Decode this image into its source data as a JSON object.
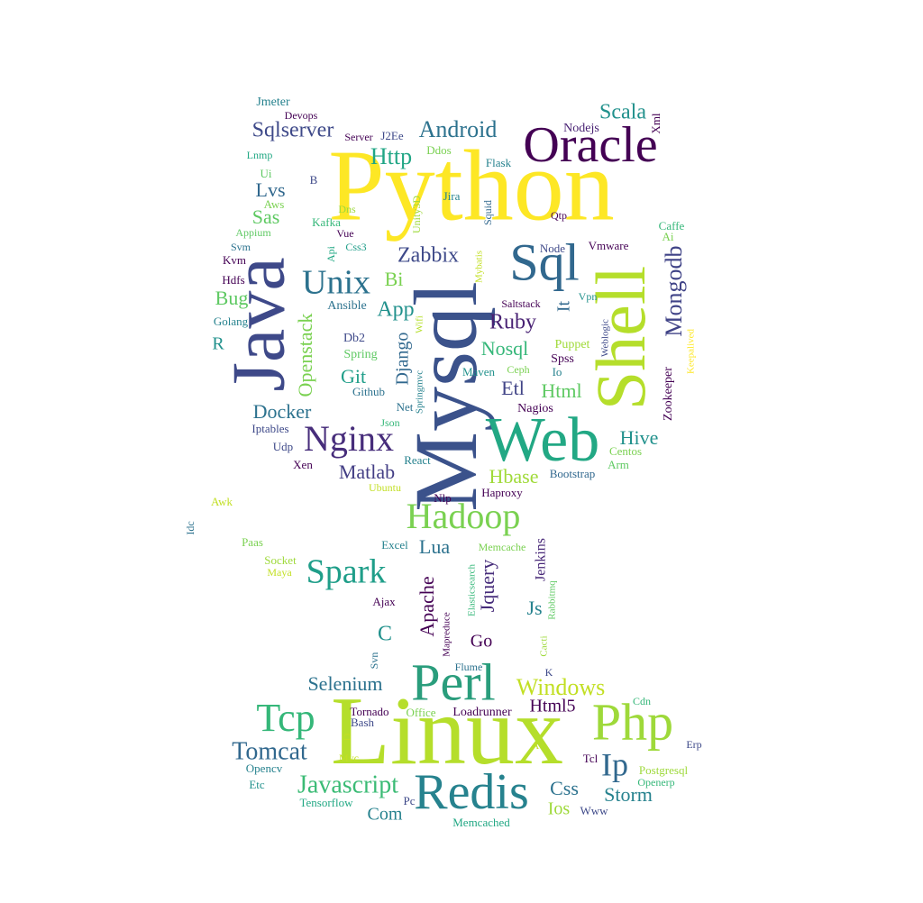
{
  "wordcloud": {
    "words": [
      {
        "text": "Python",
        "color": "#fde725"
      },
      {
        "text": "Linux",
        "color": "#b5de2b"
      },
      {
        "text": "Mysql",
        "color": "#3b528b"
      },
      {
        "text": "Java",
        "color": "#3e4989"
      },
      {
        "text": "Shell",
        "color": "#b5de2b"
      },
      {
        "text": "Web",
        "color": "#22a884"
      },
      {
        "text": "Oracle",
        "color": "#440154"
      },
      {
        "text": "Sql",
        "color": "#31688e"
      },
      {
        "text": "Perl",
        "color": "#2a9d7c"
      },
      {
        "text": "Redis",
        "color": "#26828e"
      },
      {
        "text": "Php",
        "color": "#9ed93a"
      },
      {
        "text": "Hadoop",
        "color": "#7ad151"
      },
      {
        "text": "Spark",
        "color": "#1f9e89"
      },
      {
        "text": "Tcp",
        "color": "#35b779"
      },
      {
        "text": "Nginx",
        "color": "#472d7b"
      },
      {
        "text": "Unix",
        "color": "#2c728e"
      },
      {
        "text": "Mongodb",
        "color": "#404387"
      },
      {
        "text": "Android",
        "color": "#2c728e"
      },
      {
        "text": "Tomcat",
        "color": "#31688e"
      },
      {
        "text": "Javascript",
        "color": "#3bbb75"
      },
      {
        "text": "Windows",
        "color": "#c2df23"
      },
      {
        "text": "Ip",
        "color": "#31688e"
      },
      {
        "text": "Scala",
        "color": "#21918c"
      },
      {
        "text": "Sqlserver",
        "color": "#3e4989"
      },
      {
        "text": "Http",
        "color": "#21a685"
      },
      {
        "text": "Openstack",
        "color": "#7ad151"
      },
      {
        "text": "Zabbix",
        "color": "#3e4989"
      },
      {
        "text": "Docker",
        "color": "#2c728e"
      },
      {
        "text": "Matlab",
        "color": "#433e85"
      },
      {
        "text": "Hive",
        "color": "#21918c"
      },
      {
        "text": "Selenium",
        "color": "#2c728e"
      },
      {
        "text": "Storm",
        "color": "#26828e"
      },
      {
        "text": "Css",
        "color": "#2c728e"
      },
      {
        "text": "Ruby",
        "color": "#482173"
      },
      {
        "text": "Nosql",
        "color": "#35b779"
      },
      {
        "text": "Html",
        "color": "#5ec962"
      },
      {
        "text": "Hbase",
        "color": "#a0da39"
      },
      {
        "text": "Apache",
        "color": "#440154"
      },
      {
        "text": "Jquery",
        "color": "#472d7b"
      },
      {
        "text": "Django",
        "color": "#31688e"
      },
      {
        "text": "App",
        "color": "#21918c"
      },
      {
        "text": "Lvs",
        "color": "#31688e"
      },
      {
        "text": "Sas",
        "color": "#5ec962"
      },
      {
        "text": "Bug",
        "color": "#5ec962"
      },
      {
        "text": "Bi",
        "color": "#7ad151"
      },
      {
        "text": "Git",
        "color": "#1f9e89"
      },
      {
        "text": "Etl",
        "color": "#414487"
      },
      {
        "text": "Lua",
        "color": "#2c728e"
      },
      {
        "text": "Js",
        "color": "#26828e"
      },
      {
        "text": "Go",
        "color": "#440154"
      },
      {
        "text": "C",
        "color": "#21918c"
      },
      {
        "text": "R",
        "color": "#21918c"
      },
      {
        "text": "Html5",
        "color": "#440154"
      },
      {
        "text": "Ios",
        "color": "#9ed93a"
      },
      {
        "text": "Com",
        "color": "#26828e"
      },
      {
        "text": "It",
        "color": "#31688e"
      },
      {
        "text": "Zookeeper",
        "color": "#440154"
      },
      {
        "text": "Jenkins",
        "color": "#482878"
      },
      {
        "text": "Jmeter",
        "color": "#26828e"
      },
      {
        "text": "Devops",
        "color": "#440154"
      },
      {
        "text": "Server",
        "color": "#440154"
      },
      {
        "text": "J2Ee",
        "color": "#3e4989"
      },
      {
        "text": "Nodejs",
        "color": "#482173"
      },
      {
        "text": "Xml",
        "color": "#440154"
      },
      {
        "text": "Lnmp",
        "color": "#22a884"
      },
      {
        "text": "Ddos",
        "color": "#7ad151"
      },
      {
        "text": "Flask",
        "color": "#26828e"
      },
      {
        "text": "B",
        "color": "#3e4989"
      },
      {
        "text": "Ui",
        "color": "#5ec962"
      },
      {
        "text": "Aws",
        "color": "#7ad151"
      },
      {
        "text": "Jira",
        "color": "#26828e"
      },
      {
        "text": "Unity3D",
        "color": "#9ed93a"
      },
      {
        "text": "Squid",
        "color": "#31688e"
      },
      {
        "text": "Qtp",
        "color": "#440154"
      },
      {
        "text": "Caffe",
        "color": "#35b779"
      },
      {
        "text": "Ai",
        "color": "#7ad151"
      },
      {
        "text": "Appium",
        "color": "#5ec962"
      },
      {
        "text": "Kafka",
        "color": "#35b779"
      },
      {
        "text": "Dns",
        "color": "#9ed93a"
      },
      {
        "text": "Vue",
        "color": "#440154"
      },
      {
        "text": "Svm",
        "color": "#2c728e"
      },
      {
        "text": "Api",
        "color": "#22a884"
      },
      {
        "text": "Css3",
        "color": "#1f9e89"
      },
      {
        "text": "Node",
        "color": "#3e4989"
      },
      {
        "text": "Vmware",
        "color": "#440154"
      },
      {
        "text": "Kvm",
        "color": "#440154"
      },
      {
        "text": "Mybatis",
        "color": "#c2df23"
      },
      {
        "text": "Hdfs",
        "color": "#440154"
      },
      {
        "text": "Saltstack",
        "color": "#440154"
      },
      {
        "text": "Vpn",
        "color": "#21918c"
      },
      {
        "text": "Ansible",
        "color": "#2c728e"
      },
      {
        "text": "Golang",
        "color": "#26828e"
      },
      {
        "text": "Wifi",
        "color": "#b5de2b"
      },
      {
        "text": "Weblogic",
        "color": "#3e4989"
      },
      {
        "text": "Db2",
        "color": "#3e4989"
      },
      {
        "text": "Spring",
        "color": "#5ec962"
      },
      {
        "text": "Puppet",
        "color": "#a0da39"
      },
      {
        "text": "Spss",
        "color": "#440154"
      },
      {
        "text": "Maven",
        "color": "#21918c"
      },
      {
        "text": "Ceph",
        "color": "#7ad151"
      },
      {
        "text": "Io",
        "color": "#26828e"
      },
      {
        "text": "Keepalived",
        "color": "#fde725"
      },
      {
        "text": "Springmvc",
        "color": "#26828e"
      },
      {
        "text": "Github",
        "color": "#2c728e"
      },
      {
        "text": "Net",
        "color": "#2c728e"
      },
      {
        "text": "Nagios",
        "color": "#440154"
      },
      {
        "text": "Iptables",
        "color": "#3e4989"
      },
      {
        "text": "Json",
        "color": "#35b779"
      },
      {
        "text": "Udp",
        "color": "#3e4989"
      },
      {
        "text": "Centos",
        "color": "#7ad151"
      },
      {
        "text": "Arm",
        "color": "#5ec962"
      },
      {
        "text": "Xen",
        "color": "#440154"
      },
      {
        "text": "React",
        "color": "#26828e"
      },
      {
        "text": "Ubuntu",
        "color": "#c2df23"
      },
      {
        "text": "Bootstrap",
        "color": "#31688e"
      },
      {
        "text": "Nlp",
        "color": "#440154"
      },
      {
        "text": "Haproxy",
        "color": "#440154"
      },
      {
        "text": "Awk",
        "color": "#c2df23"
      },
      {
        "text": "Idc",
        "color": "#2c728e"
      },
      {
        "text": "Paas",
        "color": "#7ad151"
      },
      {
        "text": "Excel",
        "color": "#26828e"
      },
      {
        "text": "Memcache",
        "color": "#7ad151"
      },
      {
        "text": "Socket",
        "color": "#9ed93a"
      },
      {
        "text": "Maya",
        "color": "#c2df23"
      },
      {
        "text": "Elasticsearch",
        "color": "#35b779"
      },
      {
        "text": "Rabbitmq",
        "color": "#5ec962"
      },
      {
        "text": "Ajax",
        "color": "#440154"
      },
      {
        "text": "Mapreduce",
        "color": "#440154"
      },
      {
        "text": "Cacti",
        "color": "#9ed93a"
      },
      {
        "text": "Svn",
        "color": "#2c728e"
      },
      {
        "text": "Flume",
        "color": "#2c728e"
      },
      {
        "text": "K",
        "color": "#3e4989"
      },
      {
        "text": "Cdn",
        "color": "#35b779"
      },
      {
        "text": "Tornado",
        "color": "#440154"
      },
      {
        "text": "Office",
        "color": "#7ad151"
      },
      {
        "text": "Loadrunner",
        "color": "#440154"
      },
      {
        "text": "Bash",
        "color": "#3e4989"
      },
      {
        "text": "D",
        "color": "#c2df23"
      },
      {
        "text": "A",
        "color": "#c2df23"
      },
      {
        "text": "Erp",
        "color": "#3e4989"
      },
      {
        "text": "Mvc",
        "color": "#c2df23"
      },
      {
        "text": "Tcl",
        "color": "#440154"
      },
      {
        "text": "Postgresql",
        "color": "#9ed93a"
      },
      {
        "text": "Opencv",
        "color": "#26828e"
      },
      {
        "text": "Openerp",
        "color": "#35b779"
      },
      {
        "text": "Etc",
        "color": "#21918c"
      },
      {
        "text": "Tensorflow",
        "color": "#22a884"
      },
      {
        "text": "Pc",
        "color": "#3e4989"
      },
      {
        "text": "Www",
        "color": "#3e4989"
      },
      {
        "text": "Memcached",
        "color": "#22a884"
      }
    ]
  }
}
